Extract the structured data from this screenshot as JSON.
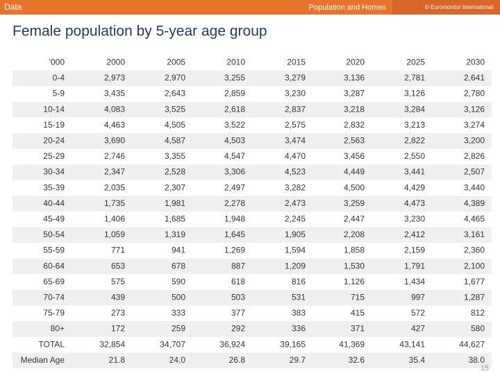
{
  "header": {
    "section": "Data",
    "topic": "Population and Homes",
    "source": "© Euromonitor International"
  },
  "title": "Female population by 5-year age group",
  "table": {
    "columns": [
      "‘000",
      "2000",
      "2005",
      "2010",
      "2015",
      "2020",
      "2025",
      "2030"
    ],
    "rows": [
      [
        "0-4",
        "2,973",
        "2,970",
        "3,255",
        "3,279",
        "3,136",
        "2,781",
        "2,641"
      ],
      [
        "5-9",
        "3,435",
        "2,643",
        "2,859",
        "3,230",
        "3,287",
        "3,126",
        "2,780"
      ],
      [
        "10-14",
        "4,083",
        "3,525",
        "2,618",
        "2,837",
        "3,218",
        "3,284",
        "3,126"
      ],
      [
        "15-19",
        "4,463",
        "4,505",
        "3,522",
        "2,575",
        "2,832",
        "3,213",
        "3,274"
      ],
      [
        "20-24",
        "3,690",
        "4,587",
        "4,503",
        "3,474",
        "2,563",
        "2,822",
        "3,200"
      ],
      [
        "25-29",
        "2,746",
        "3,355",
        "4,547",
        "4,470",
        "3,456",
        "2,550",
        "2,826"
      ],
      [
        "30-34",
        "2,347",
        "2,528",
        "3,306",
        "4,523",
        "4,449",
        "3,441",
        "2,507"
      ],
      [
        "35-39",
        "2,035",
        "2,307",
        "2,497",
        "3,282",
        "4,500",
        "4,429",
        "3,440"
      ],
      [
        "40-44",
        "1,735",
        "1,981",
        "2,278",
        "2,473",
        "3,259",
        "4,473",
        "4,389"
      ],
      [
        "45-49",
        "1,406",
        "1,685",
        "1,948",
        "2,245",
        "2,447",
        "3,230",
        "4,465"
      ],
      [
        "50-54",
        "1,059",
        "1,319",
        "1,645",
        "1,905",
        "2,208",
        "2,412",
        "3,161"
      ],
      [
        "55-59",
        "771",
        "941",
        "1,269",
        "1,594",
        "1,858",
        "2,159",
        "2,360"
      ],
      [
        "60-64",
        "653",
        "678",
        "887",
        "1,209",
        "1,530",
        "1,791",
        "2,100"
      ],
      [
        "65-69",
        "575",
        "590",
        "618",
        "816",
        "1,126",
        "1,434",
        "1,677"
      ],
      [
        "70-74",
        "439",
        "500",
        "503",
        "531",
        "715",
        "997",
        "1,287"
      ],
      [
        "75-79",
        "273",
        "333",
        "377",
        "383",
        "415",
        "572",
        "812"
      ],
      [
        "80+",
        "172",
        "259",
        "292",
        "336",
        "371",
        "427",
        "580"
      ],
      [
        "TOTAL",
        "32,854",
        "34,707",
        "36,924",
        "39,165",
        "41,369",
        "43,141",
        "44,627"
      ],
      [
        "Median Age",
        "21.8",
        "24.0",
        "26.8",
        "29.7",
        "32.6",
        "35.4",
        "38.0"
      ]
    ]
  },
  "page_number": "15"
}
